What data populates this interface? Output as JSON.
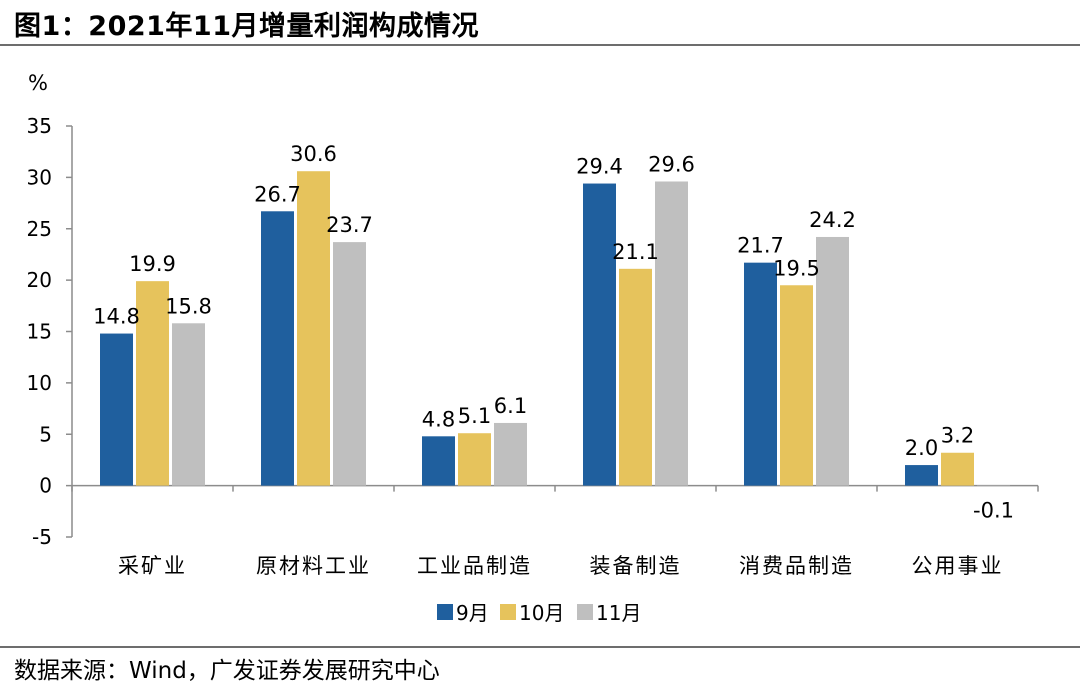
{
  "header": {
    "title": "图1：2021年11月增量利润构成情况"
  },
  "footer": {
    "source": "数据来源：Wind，广发证券发展研究中心"
  },
  "chart_data": {
    "type": "bar",
    "title": "2021年11月增量利润构成情况",
    "ylabel": "%",
    "xlabel": "",
    "ylim": [
      -5,
      35
    ],
    "yticks": [
      -5,
      0,
      5,
      10,
      15,
      20,
      25,
      30,
      35
    ],
    "grid": false,
    "legend_position": "bottom",
    "categories": [
      "采矿业",
      "原材料工业",
      "工业品制造",
      "装备制造",
      "消费品制造",
      "公用事业"
    ],
    "series": [
      {
        "name": "9月",
        "color": "#1f5f9e",
        "values": [
          14.8,
          26.7,
          4.8,
          29.4,
          21.7,
          2.0
        ],
        "labels": [
          "14.8",
          "26.7",
          "4.8",
          "29.4",
          "21.7",
          "2.0"
        ]
      },
      {
        "name": "10月",
        "color": "#e6c35c",
        "values": [
          19.9,
          30.6,
          5.1,
          21.1,
          19.5,
          3.2
        ],
        "labels": [
          "19.9",
          "30.6",
          "5.1",
          "21.1",
          "19.5",
          "3.2"
        ]
      },
      {
        "name": "11月",
        "color": "#bfbfbf",
        "values": [
          15.8,
          23.7,
          6.1,
          29.6,
          24.2,
          -0.1
        ],
        "labels": [
          "15.8",
          "23.7",
          "6.1",
          "29.6",
          "24.2",
          "-0.1"
        ]
      }
    ]
  }
}
